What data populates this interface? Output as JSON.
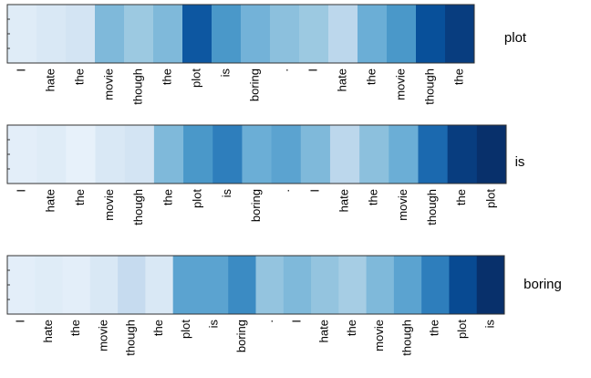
{
  "chart_data": [
    {
      "type": "heatmap",
      "label": "plot",
      "categories": [
        "I",
        "hate",
        "the",
        "movie",
        "though",
        "the",
        "plot",
        "is",
        "boring",
        ".",
        "I",
        "hate",
        "the",
        "movie",
        "though",
        "the"
      ],
      "values": [
        0.12,
        0.15,
        0.18,
        0.45,
        0.38,
        0.45,
        0.85,
        0.6,
        0.48,
        0.42,
        0.38,
        0.28,
        0.5,
        0.6,
        0.88,
        0.95
      ],
      "colors": [
        "#f7fbff",
        "#deebf7",
        "#c6dbef",
        "#9ecae1",
        "#6baed6",
        "#4292c6",
        "#2171b5",
        "#08519c",
        "#08306b"
      ]
    },
    {
      "type": "heatmap",
      "label": "is",
      "categories": [
        "I",
        "hate",
        "the",
        "movie",
        "though",
        "the",
        "plot",
        "is",
        "boring",
        ".",
        "I",
        "hate",
        "the",
        "movie",
        "though",
        "the",
        "plot"
      ],
      "values": [
        0.1,
        0.12,
        0.08,
        0.15,
        0.18,
        0.45,
        0.6,
        0.7,
        0.5,
        0.55,
        0.45,
        0.28,
        0.42,
        0.5,
        0.78,
        0.95,
        1.0
      ],
      "colors": [
        "#f7fbff",
        "#deebf7",
        "#c6dbef",
        "#9ecae1",
        "#6baed6",
        "#4292c6",
        "#2171b5",
        "#08519c",
        "#08306b"
      ]
    },
    {
      "type": "heatmap",
      "label": "boring",
      "categories": [
        "I",
        "hate",
        "the",
        "movie",
        "though",
        "the",
        "plot",
        "is",
        "boring",
        ".",
        "I",
        "hate",
        "the",
        "movie",
        "though",
        "the",
        "plot",
        "is"
      ],
      "values": [
        0.1,
        0.12,
        0.1,
        0.15,
        0.25,
        0.15,
        0.55,
        0.55,
        0.65,
        0.4,
        0.45,
        0.4,
        0.35,
        0.45,
        0.55,
        0.7,
        0.9,
        1.0
      ],
      "colors": [
        "#f7fbff",
        "#deebf7",
        "#c6dbef",
        "#9ecae1",
        "#6baed6",
        "#4292c6",
        "#2171b5",
        "#08519c",
        "#08306b"
      ]
    }
  ]
}
